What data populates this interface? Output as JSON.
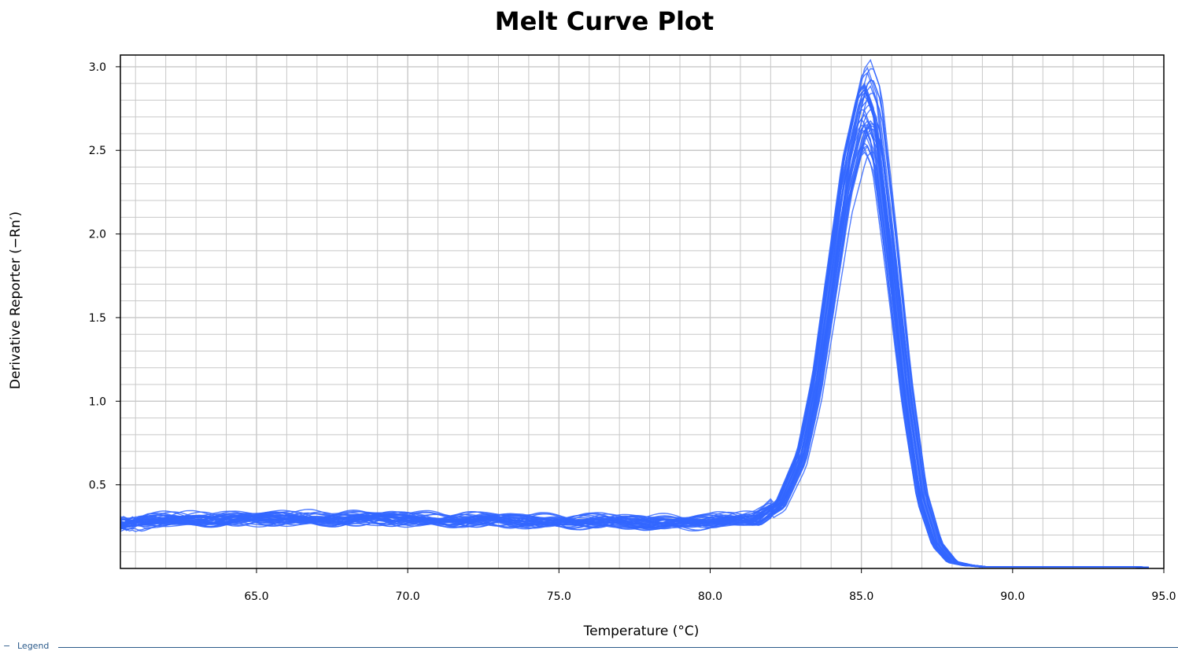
{
  "chart_data": {
    "type": "line",
    "title": "Melt Curve Plot",
    "xlabel": "Temperature (°C)",
    "ylabel": "Derivative Reporter (−Rn′)",
    "xlim": [
      60.5,
      95.0
    ],
    "ylim": [
      0.0,
      3.07
    ],
    "x_ticks": [
      65.0,
      70.0,
      75.0,
      80.0,
      85.0,
      90.0,
      95.0
    ],
    "x_tick_labels": [
      "65.0",
      "70.0",
      "75.0",
      "80.0",
      "85.0",
      "90.0",
      "95.0"
    ],
    "y_ticks": [
      0.5,
      1.0,
      1.5,
      2.0,
      2.5,
      3.0
    ],
    "y_tick_labels": [
      "0.5",
      "1.0",
      "1.5",
      "2.0",
      "2.5",
      "3.0"
    ],
    "grid": true,
    "series_color": "#3366ff",
    "series_count_approx": 40,
    "representative_curve": {
      "x": [
        60.5,
        62.0,
        64.0,
        66.0,
        68.0,
        70.0,
        72.0,
        74.0,
        76.0,
        78.0,
        80.0,
        81.5,
        82.3,
        83.0,
        83.5,
        84.0,
        84.5,
        85.0,
        85.2,
        85.5,
        86.0,
        86.5,
        87.0,
        87.5,
        88.0,
        88.5,
        89.0,
        90.0,
        92.0,
        94.0,
        95.0
      ],
      "y": [
        0.28,
        0.29,
        0.3,
        0.3,
        0.3,
        0.3,
        0.29,
        0.29,
        0.28,
        0.28,
        0.28,
        0.3,
        0.4,
        0.7,
        1.15,
        1.8,
        2.45,
        2.85,
        2.9,
        2.75,
        1.95,
        1.1,
        0.45,
        0.15,
        0.04,
        0.02,
        0.01,
        0.01,
        0.01,
        0.01,
        0.0
      ]
    },
    "peak_x": 85.2,
    "peak_y_range": [
      2.5,
      3.05
    ]
  },
  "legend": {
    "label": "Legend",
    "toggle": "−"
  }
}
